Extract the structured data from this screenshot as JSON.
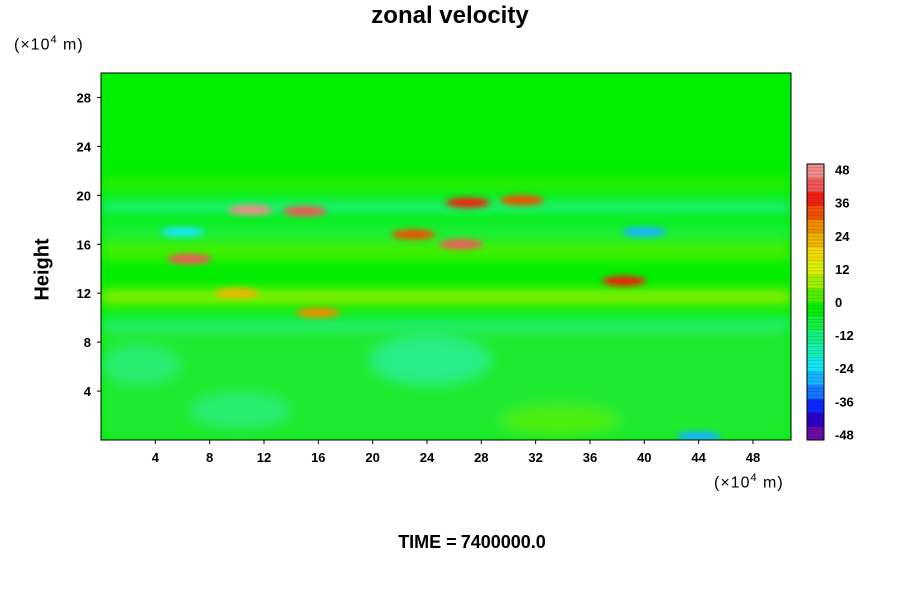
{
  "chart_data": {
    "type": "heatmap",
    "title": "zonal velocity",
    "ylabel": "Height",
    "xlabel": "",
    "x_unit_prefix": "(×10",
    "x_unit_exp": "4",
    "x_unit_suffix": " m)",
    "y_unit_prefix": "(×10",
    "y_unit_exp": "4",
    "y_unit_suffix": " m)",
    "xlim": [
      0,
      50.8
    ],
    "ylim": [
      0,
      30
    ],
    "x_ticks": [
      4,
      8,
      12,
      16,
      20,
      24,
      28,
      32,
      36,
      40,
      44,
      48
    ],
    "y_ticks": [
      4,
      8,
      12,
      16,
      20,
      24,
      28
    ],
    "colorbar": {
      "min": -50,
      "max": 50,
      "ticks": [
        48,
        36,
        24,
        12,
        0,
        -12,
        -24,
        -36,
        -48
      ],
      "colors": [
        "#6a0aa8",
        "#2a00c8",
        "#0a28ff",
        "#1478ff",
        "#14b4ff",
        "#14e6f0",
        "#14f0b4",
        "#14f080",
        "#14f040",
        "#00f000",
        "#50f000",
        "#a0f000",
        "#dcf000",
        "#f0dc00",
        "#f0b400",
        "#f08c00",
        "#f05000",
        "#f02010",
        "#f05858",
        "#f08c8c"
      ]
    },
    "features": [
      {
        "x": 11,
        "y": 18.8,
        "value": 46
      },
      {
        "x": 15,
        "y": 18.7,
        "value": 40
      },
      {
        "x": 6.5,
        "y": 14.8,
        "value": 44
      },
      {
        "x": 26.5,
        "y": 16,
        "value": 40
      },
      {
        "x": 23,
        "y": 16.8,
        "value": 34
      },
      {
        "x": 27,
        "y": 19.4,
        "value": 38
      },
      {
        "x": 31,
        "y": 19.6,
        "value": 32
      },
      {
        "x": 38.5,
        "y": 13,
        "value": 36
      },
      {
        "x": 40,
        "y": 17,
        "value": -26
      },
      {
        "x": 6,
        "y": 17,
        "value": -22
      },
      {
        "x": 44,
        "y": 0.3,
        "value": -30
      },
      {
        "x": 16,
        "y": 10.4,
        "value": 28
      },
      {
        "x": 10,
        "y": 12,
        "value": 20
      }
    ]
  },
  "footer": {
    "time_label": "TIME =",
    "time_value": "7400000.0"
  }
}
